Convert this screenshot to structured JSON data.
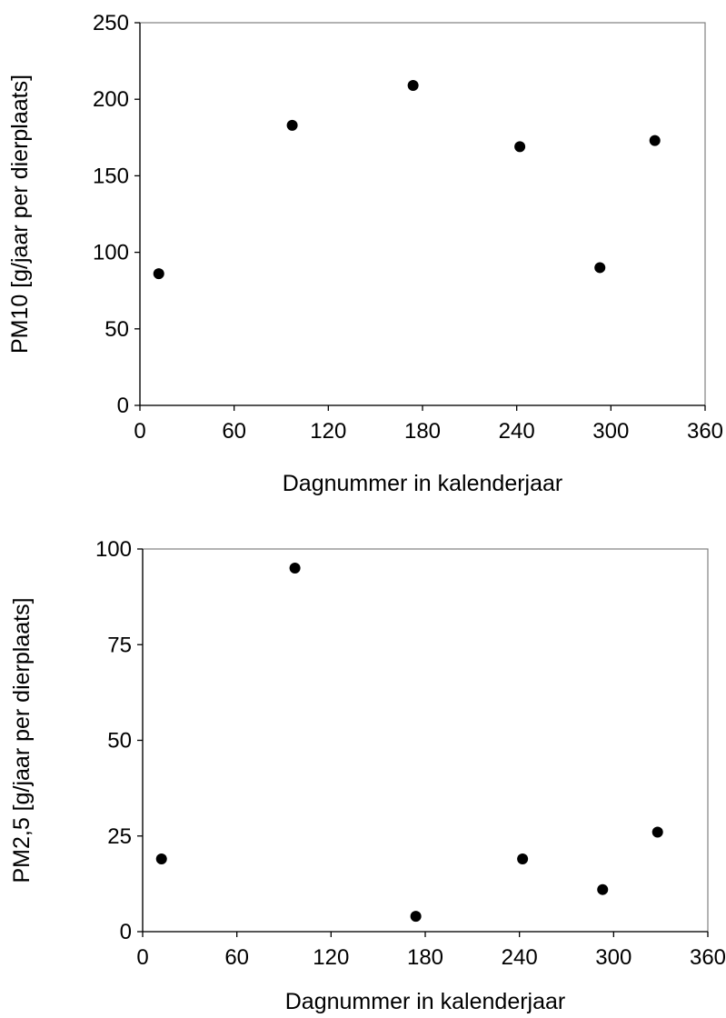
{
  "chart_data": [
    {
      "type": "scatter",
      "title": "",
      "xlabel": "Dagnummer in kalenderjaar",
      "ylabel": "PM10 [g/jaar per dierplaats]",
      "xlim": [
        0,
        360
      ],
      "ylim": [
        0,
        250
      ],
      "xticks": [
        0,
        60,
        120,
        180,
        240,
        300,
        360
      ],
      "yticks": [
        0,
        50,
        100,
        150,
        200,
        250
      ],
      "grid": false,
      "marker_color": "#000000",
      "points": [
        {
          "x": 12,
          "y": 86
        },
        {
          "x": 97,
          "y": 183
        },
        {
          "x": 174,
          "y": 209
        },
        {
          "x": 242,
          "y": 169
        },
        {
          "x": 293,
          "y": 90
        },
        {
          "x": 328,
          "y": 173
        }
      ]
    },
    {
      "type": "scatter",
      "title": "",
      "xlabel": "Dagnummer in kalenderjaar",
      "ylabel": "PM2,5 [g/jaar per dierplaats]",
      "xlim": [
        0,
        360
      ],
      "ylim": [
        0,
        100
      ],
      "xticks": [
        0,
        60,
        120,
        180,
        240,
        300,
        360
      ],
      "yticks": [
        0,
        25,
        50,
        75,
        100
      ],
      "grid": false,
      "marker_color": "#000000",
      "points": [
        {
          "x": 12,
          "y": 19
        },
        {
          "x": 97,
          "y": 95
        },
        {
          "x": 174,
          "y": 4
        },
        {
          "x": 242,
          "y": 19
        },
        {
          "x": 293,
          "y": 11
        },
        {
          "x": 328,
          "y": 26
        }
      ]
    }
  ]
}
